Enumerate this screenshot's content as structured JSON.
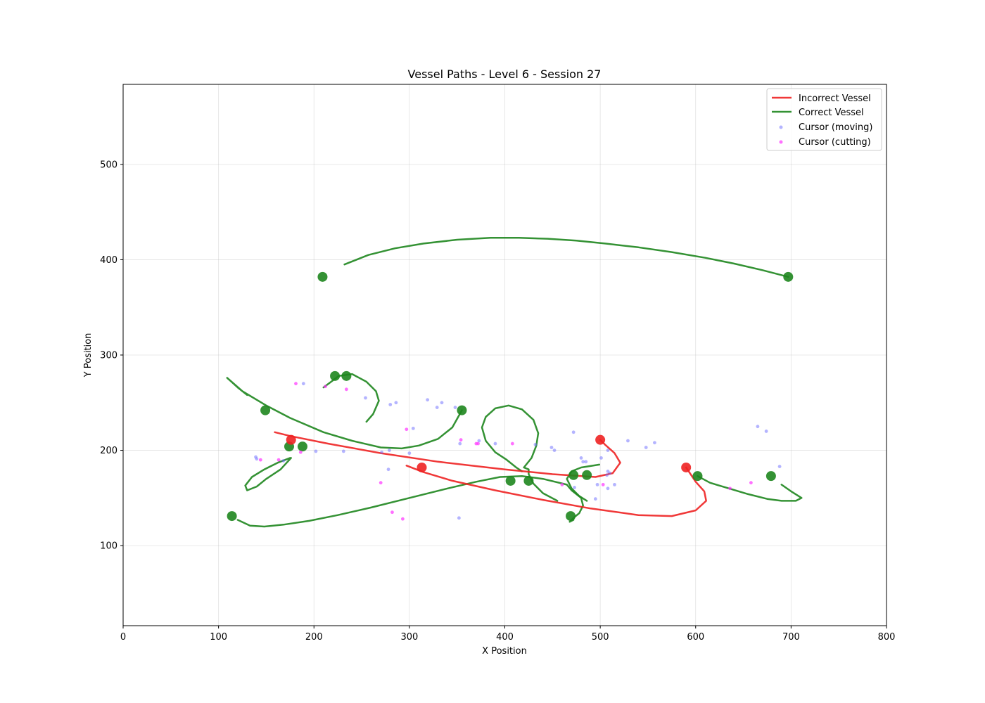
{
  "chart_data": {
    "type": "line",
    "title": "Vessel Paths - Level 6 - Session 27",
    "xlabel": "X Position",
    "ylabel": "Y Position",
    "xlim": [
      0,
      800
    ],
    "ylim": [
      16,
      584
    ],
    "xticks": [
      0,
      100,
      200,
      300,
      400,
      500,
      600,
      700,
      800
    ],
    "yticks": [
      100,
      200,
      300,
      400,
      500
    ],
    "grid": true,
    "legend_position": "top-right",
    "legend": [
      "Incorrect Vessel",
      "Correct Vessel",
      "Cursor (moving)",
      "Cursor (cutting)"
    ],
    "colors": {
      "incorrect": "#ee2222",
      "correct": "#1e861e",
      "cursor_moving": "#6a6aff",
      "cursor_cutting": "#ff33ff"
    },
    "incorrect_vessels": [
      {
        "points": [
          [
            159,
            219
          ],
          [
            175,
            215
          ],
          [
            215,
            207
          ],
          [
            270,
            197
          ],
          [
            330,
            188
          ],
          [
            400,
            180
          ],
          [
            450,
            175
          ],
          [
            495,
            172
          ],
          [
            513,
            176
          ],
          [
            521,
            187
          ],
          [
            515,
            197
          ],
          [
            505,
            206
          ],
          [
            500,
            211
          ]
        ]
      },
      {
        "points": [
          [
            297,
            184
          ],
          [
            315,
            177
          ],
          [
            345,
            168
          ],
          [
            390,
            158
          ],
          [
            440,
            148
          ],
          [
            490,
            139
          ],
          [
            540,
            132
          ],
          [
            575,
            131
          ],
          [
            600,
            137
          ],
          [
            611,
            147
          ],
          [
            609,
            157
          ],
          [
            600,
            167
          ],
          [
            590,
            182
          ]
        ]
      }
    ],
    "incorrect_endpoints": [
      [
        176,
        211
      ],
      [
        313,
        182
      ],
      [
        500,
        211
      ],
      [
        590,
        182
      ]
    ],
    "correct_vessels": [
      {
        "points": [
          [
            232,
            395
          ],
          [
            257,
            405
          ],
          [
            285,
            412
          ],
          [
            315,
            417
          ],
          [
            350,
            421
          ],
          [
            385,
            423
          ],
          [
            415,
            423
          ],
          [
            445,
            422
          ],
          [
            475,
            420
          ],
          [
            505,
            417
          ],
          [
            540,
            413
          ],
          [
            575,
            408
          ],
          [
            610,
            402
          ],
          [
            640,
            396
          ],
          [
            670,
            389
          ],
          [
            697,
            382
          ]
        ]
      },
      {
        "points": [
          [
            130,
            258
          ],
          [
            120,
            266
          ],
          [
            109,
            276
          ],
          [
            125,
            262
          ],
          [
            150,
            247
          ],
          [
            175,
            234
          ],
          [
            210,
            219
          ],
          [
            240,
            210
          ],
          [
            270,
            203
          ],
          [
            292,
            202
          ],
          [
            310,
            205
          ],
          [
            330,
            212
          ],
          [
            345,
            224
          ],
          [
            355,
            242
          ]
        ]
      },
      {
        "points": [
          [
            120,
            127
          ],
          [
            133,
            121
          ],
          [
            148,
            120
          ],
          [
            168,
            122
          ],
          [
            195,
            126
          ],
          [
            225,
            132
          ],
          [
            260,
            140
          ],
          [
            300,
            150
          ],
          [
            340,
            160
          ],
          [
            370,
            167
          ],
          [
            395,
            172
          ],
          [
            418,
            173
          ],
          [
            440,
            170
          ],
          [
            465,
            164
          ],
          [
            470,
            158
          ],
          [
            480,
            150
          ],
          [
            482,
            142
          ],
          [
            478,
            134
          ],
          [
            473,
            130
          ],
          [
            470,
            127
          ],
          [
            468,
            125
          ],
          [
            472,
            127
          ]
        ]
      },
      {
        "points": [
          [
            210,
            266
          ],
          [
            218,
            272
          ],
          [
            226,
            278
          ],
          [
            240,
            280
          ],
          [
            255,
            272
          ],
          [
            265,
            262
          ],
          [
            268,
            252
          ],
          [
            262,
            238
          ],
          [
            255,
            230
          ]
        ]
      },
      {
        "points": [
          [
            176,
            192
          ],
          [
            165,
            180
          ],
          [
            150,
            170
          ],
          [
            140,
            162
          ],
          [
            130,
            158
          ],
          [
            128,
            163
          ],
          [
            135,
            172
          ],
          [
            148,
            180
          ],
          [
            162,
            187
          ],
          [
            175,
            192
          ]
        ]
      },
      {
        "points": [
          [
            455,
            147
          ],
          [
            440,
            155
          ],
          [
            430,
            165
          ],
          [
            425,
            175
          ],
          [
            425,
            180
          ],
          [
            420,
            182
          ],
          [
            428,
            192
          ],
          [
            433,
            205
          ],
          [
            435,
            218
          ],
          [
            430,
            232
          ],
          [
            418,
            243
          ],
          [
            404,
            247
          ],
          [
            390,
            244
          ],
          [
            380,
            235
          ],
          [
            376,
            224
          ],
          [
            380,
            210
          ],
          [
            390,
            198
          ],
          [
            402,
            190
          ],
          [
            412,
            182
          ],
          [
            418,
            178
          ]
        ]
      },
      {
        "points": [
          [
            602,
            173
          ],
          [
            615,
            166
          ],
          [
            635,
            160
          ],
          [
            655,
            154
          ],
          [
            675,
            149
          ],
          [
            690,
            147
          ],
          [
            705,
            147
          ],
          [
            711,
            150
          ],
          [
            700,
            157
          ],
          [
            690,
            164
          ]
        ]
      },
      {
        "points": [
          [
            499,
            185
          ],
          [
            480,
            182
          ],
          [
            470,
            178
          ],
          [
            465,
            170
          ],
          [
            470,
            160
          ],
          [
            478,
            152
          ],
          [
            486,
            147
          ]
        ]
      }
    ],
    "correct_endpoints": [
      [
        209,
        382
      ],
      [
        697,
        382
      ],
      [
        222,
        278
      ],
      [
        234,
        278
      ],
      [
        149,
        242
      ],
      [
        355,
        242
      ],
      [
        174,
        204
      ],
      [
        188,
        204
      ],
      [
        114,
        131
      ],
      [
        406,
        168
      ],
      [
        425,
        168
      ],
      [
        469,
        131
      ],
      [
        472,
        174
      ],
      [
        486,
        174
      ],
      [
        602,
        173
      ],
      [
        679,
        173
      ]
    ],
    "cursor_moving": [
      [
        189,
        270
      ],
      [
        254,
        255
      ],
      [
        319,
        253
      ],
      [
        334,
        250
      ],
      [
        286,
        250
      ],
      [
        280,
        248
      ],
      [
        329,
        245
      ],
      [
        348,
        245
      ],
      [
        304,
        223
      ],
      [
        472,
        219
      ],
      [
        665,
        225
      ],
      [
        674,
        220
      ],
      [
        529,
        210
      ],
      [
        557,
        208
      ],
      [
        353,
        207
      ],
      [
        373,
        210
      ],
      [
        390,
        207
      ],
      [
        432,
        206
      ],
      [
        449,
        203
      ],
      [
        452,
        200
      ],
      [
        548,
        203
      ],
      [
        508,
        200
      ],
      [
        202,
        199
      ],
      [
        231,
        199
      ],
      [
        279,
        200
      ],
      [
        300,
        197
      ],
      [
        271,
        198
      ],
      [
        139,
        193
      ],
      [
        140,
        191
      ],
      [
        480,
        192
      ],
      [
        501,
        192
      ],
      [
        482,
        188
      ],
      [
        485,
        188
      ],
      [
        168,
        189
      ],
      [
        508,
        178
      ],
      [
        510,
        176
      ],
      [
        507,
        174
      ],
      [
        688,
        183
      ],
      [
        278,
        180
      ],
      [
        473,
        161
      ],
      [
        508,
        160
      ],
      [
        515,
        164
      ],
      [
        497,
        164
      ],
      [
        495,
        149
      ],
      [
        352,
        129
      ]
    ],
    "cursor_cutting": [
      [
        181,
        270
      ],
      [
        212,
        267
      ],
      [
        234,
        264
      ],
      [
        297,
        222
      ],
      [
        354,
        211
      ],
      [
        408,
        207
      ],
      [
        370,
        207
      ],
      [
        372,
        207
      ],
      [
        144,
        190
      ],
      [
        163,
        190
      ],
      [
        186,
        198
      ],
      [
        270,
        166
      ],
      [
        460,
        164
      ],
      [
        503,
        164
      ],
      [
        636,
        160
      ],
      [
        658,
        166
      ],
      [
        282,
        135
      ],
      [
        293,
        128
      ]
    ]
  }
}
